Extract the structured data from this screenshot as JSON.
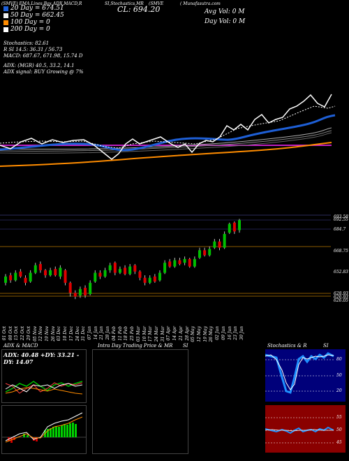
{
  "header": {
    "line1": "(SMVE) EMA,Lines,Box,ADX,MACD,R",
    "line1b": "SI,Stochastics,MR",
    "line1c": "(SMVE",
    "line1d": "( Munafasutra.com",
    "cl_label": "CL: 694.20"
  },
  "volume": {
    "avg_vol": "Avg Vol: 0   M",
    "day_vol": "Day Vol: 0   M"
  },
  "legend": [
    {
      "label": "20 Day = 674.51",
      "color": "#1e5fd6"
    },
    {
      "label": "50 Day = 662.45",
      "color": "#f0f0f0"
    },
    {
      "label": "100 Day = 0",
      "color": "#ff8c00"
    },
    {
      "label": "200 Day = 0",
      "color": "#ffffff"
    }
  ],
  "stats": {
    "stochastics": "Stochastics: 82.61",
    "rsi": "R           SI 14.5: 36.31 / 56.73",
    "macd": "MACD: 687.67, 671.98, 15.74  D",
    "adx": "ADX:                   (MGR) 40.5, 33.2, 14.1",
    "adx_signal": "ADX  signal:                              BUY Growing @ 7%"
  },
  "price_levels": [
    "693.58",
    "692.55",
    "684.7",
    "668.75",
    "652.83",
    "628.93",
    "626.93",
    "626.05"
  ],
  "dates": [
    "01 Oct",
    "08 Oct",
    "15 Oct",
    "22 Oct",
    "29 Oct",
    "05 Nov",
    "12 Nov",
    "19 Nov",
    "26 Nov",
    "03 Dec",
    "10 Dec",
    "17 Dec",
    "24 Dec",
    "31 Dec",
    "07 Jan",
    "14 Jan",
    "21 Jan",
    "28 Jan",
    "04 Feb",
    "11 Feb",
    "18 Feb",
    "25 Feb",
    "03 Mar",
    "10 Mar",
    "17 Mar",
    "24 Mar",
    "31 Mar",
    "07 Apr",
    "14 Apr",
    "21 Apr",
    "28 Apr",
    "05 May",
    "12 May",
    "19 May",
    "26 May",
    "02 Jun",
    "09 Jun",
    "16 Jun",
    "23 Jun",
    "30 Jun"
  ],
  "panels": {
    "adx_title": "ADX  & MACD",
    "adx_readout": "ADX: 40.48  +DY: 33.21  -DY: 14.07",
    "mr_title": "Intra  Day Trading Price  & MR",
    "mr_si": "SI",
    "stoch_title": "Stochastics & R",
    "stoch_si": "SI",
    "stoch_levels": [
      "80",
      "50",
      "20"
    ],
    "rsi_levels": [
      "55",
      "50",
      "45"
    ]
  },
  "candles": [
    {
      "o": 640,
      "c": 645,
      "h": 647,
      "l": 638
    },
    {
      "o": 646,
      "c": 642,
      "h": 648,
      "l": 640
    },
    {
      "o": 642,
      "c": 648,
      "h": 650,
      "l": 641
    },
    {
      "o": 649,
      "c": 645,
      "h": 651,
      "l": 644
    },
    {
      "o": 644,
      "c": 640,
      "h": 646,
      "l": 638
    },
    {
      "o": 641,
      "c": 648,
      "h": 650,
      "l": 640
    },
    {
      "o": 648,
      "c": 654,
      "h": 656,
      "l": 647
    },
    {
      "o": 655,
      "c": 650,
      "h": 657,
      "l": 648
    },
    {
      "o": 650,
      "c": 646,
      "h": 651,
      "l": 644
    },
    {
      "o": 646,
      "c": 650,
      "h": 652,
      "l": 645
    },
    {
      "o": 651,
      "c": 646,
      "h": 653,
      "l": 645
    },
    {
      "o": 645,
      "c": 652,
      "h": 654,
      "l": 643
    },
    {
      "o": 650,
      "c": 640,
      "h": 651,
      "l": 638
    },
    {
      "o": 640,
      "c": 632,
      "h": 641,
      "l": 629
    },
    {
      "o": 632,
      "c": 629,
      "h": 634,
      "l": 627
    },
    {
      "o": 630,
      "c": 635,
      "h": 637,
      "l": 628
    },
    {
      "o": 636,
      "c": 630,
      "h": 638,
      "l": 628
    },
    {
      "o": 631,
      "c": 640,
      "h": 642,
      "l": 630
    },
    {
      "o": 641,
      "c": 648,
      "h": 650,
      "l": 640
    },
    {
      "o": 648,
      "c": 645,
      "h": 650,
      "l": 643
    },
    {
      "o": 645,
      "c": 650,
      "h": 652,
      "l": 644
    },
    {
      "o": 650,
      "c": 654,
      "h": 656,
      "l": 648
    },
    {
      "o": 656,
      "c": 648,
      "h": 657,
      "l": 646
    },
    {
      "o": 648,
      "c": 651,
      "h": 653,
      "l": 647
    },
    {
      "o": 652,
      "c": 647,
      "h": 654,
      "l": 646
    },
    {
      "o": 647,
      "c": 653,
      "h": 655,
      "l": 646
    },
    {
      "o": 654,
      "c": 649,
      "h": 655,
      "l": 647
    },
    {
      "o": 649,
      "c": 644,
      "h": 650,
      "l": 642
    },
    {
      "o": 644,
      "c": 640,
      "h": 646,
      "l": 638
    },
    {
      "o": 640,
      "c": 644,
      "h": 646,
      "l": 639
    },
    {
      "o": 645,
      "c": 641,
      "h": 647,
      "l": 640
    },
    {
      "o": 642,
      "c": 648,
      "h": 650,
      "l": 641
    },
    {
      "o": 648,
      "c": 656,
      "h": 658,
      "l": 647
    },
    {
      "o": 657,
      "c": 653,
      "h": 659,
      "l": 652
    },
    {
      "o": 653,
      "c": 658,
      "h": 660,
      "l": 652
    },
    {
      "o": 658,
      "c": 655,
      "h": 660,
      "l": 654
    },
    {
      "o": 656,
      "c": 659,
      "h": 661,
      "l": 654
    },
    {
      "o": 659,
      "c": 653,
      "h": 660,
      "l": 652
    },
    {
      "o": 653,
      "c": 659,
      "h": 661,
      "l": 652
    },
    {
      "o": 660,
      "c": 666,
      "h": 668,
      "l": 659
    },
    {
      "o": 666,
      "c": 662,
      "h": 668,
      "l": 661
    },
    {
      "o": 662,
      "c": 667,
      "h": 669,
      "l": 661
    },
    {
      "o": 668,
      "c": 673,
      "h": 675,
      "l": 667
    },
    {
      "o": 673,
      "c": 668,
      "h": 675,
      "l": 666
    },
    {
      "o": 668,
      "c": 679,
      "h": 681,
      "l": 667
    },
    {
      "o": 680,
      "c": 687,
      "h": 688,
      "l": 679
    },
    {
      "o": 688,
      "c": 681,
      "h": 689,
      "l": 679
    },
    {
      "o": 682,
      "c": 690,
      "h": 691,
      "l": 680
    }
  ]
}
